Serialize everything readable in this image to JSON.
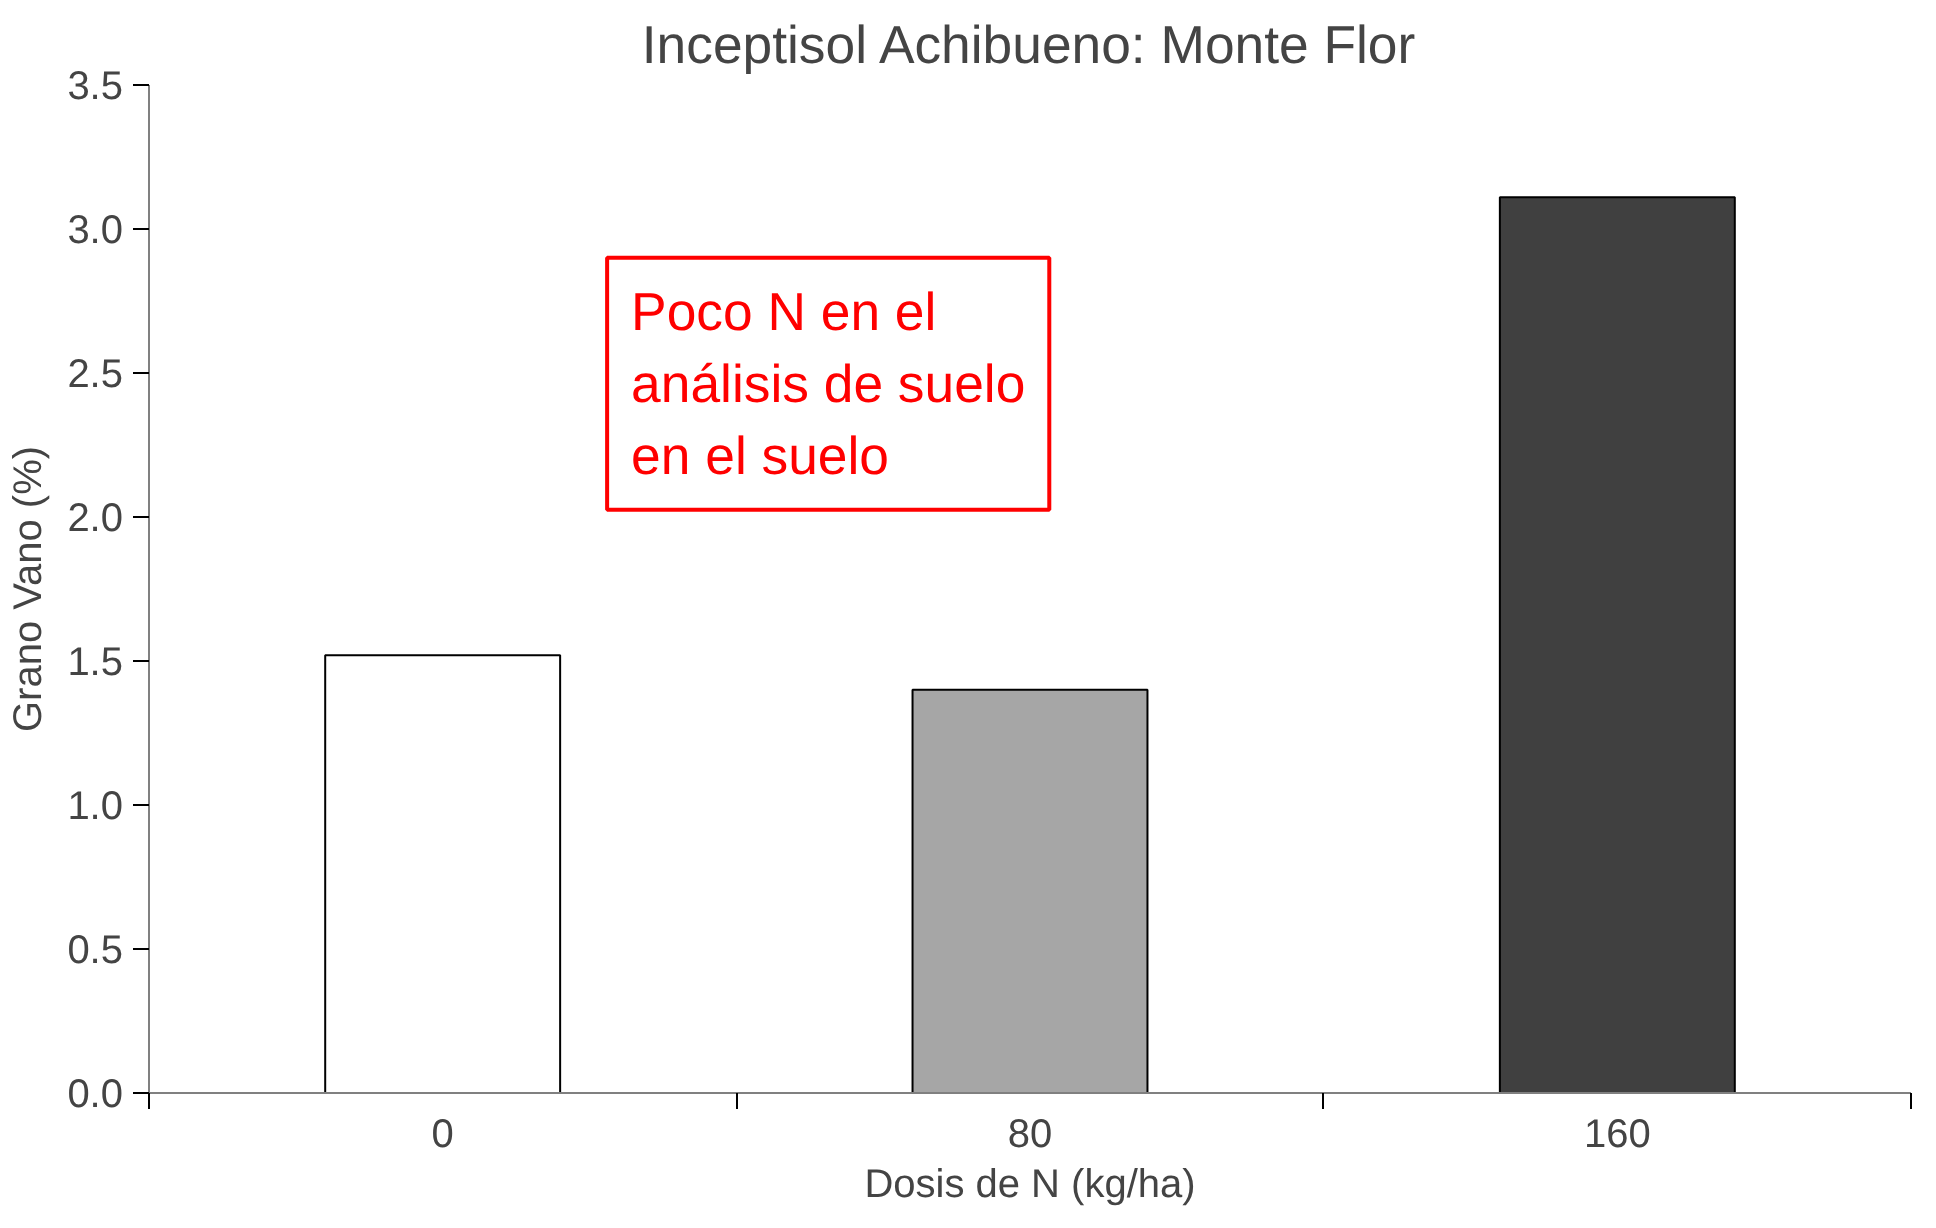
{
  "chart_data": {
    "type": "bar",
    "title": "Inceptisol Achibueno: Monte Flor",
    "xlabel": "Dosis de N (kg/ha)",
    "ylabel": "Grano Vano (%)",
    "categories": [
      "0",
      "80",
      "160"
    ],
    "values": [
      1.52,
      1.4,
      3.11
    ],
    "colors": [
      "#ffffff",
      "#a6a6a6",
      "#404040"
    ],
    "ylim": [
      0,
      3.5
    ],
    "yticks": [
      {
        "value": 0,
        "label": "0.0"
      },
      {
        "value": 0.5,
        "label": "0.5"
      },
      {
        "value": 1,
        "label": "1.0"
      },
      {
        "value": 1.5,
        "label": "1.5"
      },
      {
        "value": 2,
        "label": "2.0"
      },
      {
        "value": 2.5,
        "label": "2.5"
      },
      {
        "value": 3,
        "label": "3.0"
      },
      {
        "value": 3.5,
        "label": "3.5"
      }
    ],
    "grid": false,
    "annotations": [
      "Poco  N  en el\nanálisis de suelo\nen el suelo"
    ]
  }
}
